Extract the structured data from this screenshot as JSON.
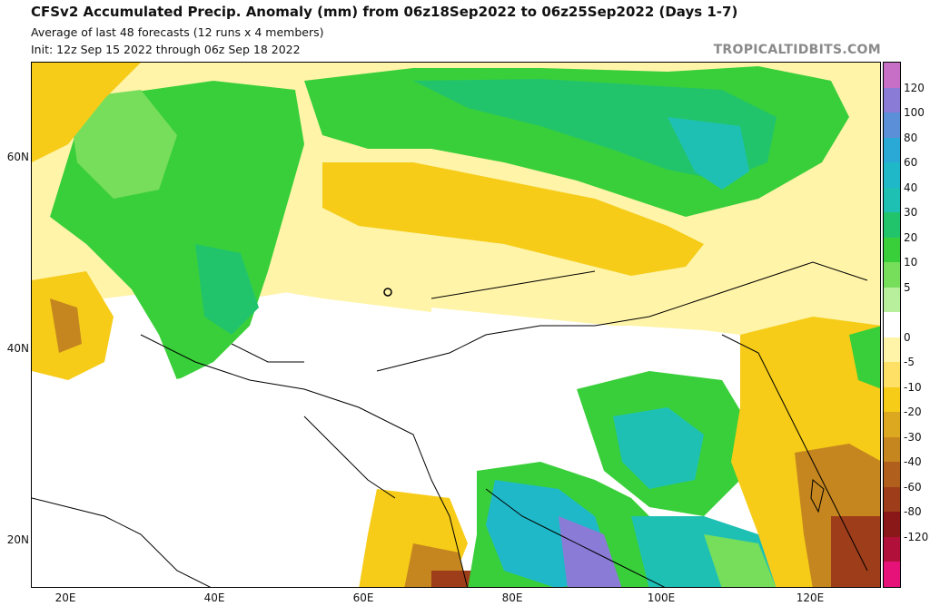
{
  "header": {
    "title": "CFSv2 Accumulated Precip. Anomaly (mm) from 06z18Sep2022 to 06z25Sep2022 (Days 1-7)",
    "subtitle1": "Average of last 48 forecasts (12 runs x 4 members)",
    "subtitle2": "Init: 12z Sep 15 2022 through 06z Sep 18 2022",
    "credit": "TROPICALTIDBITS.COM"
  },
  "axes": {
    "lat_labels": [
      "60N",
      "40N",
      "20N"
    ],
    "lon_labels": [
      "20E",
      "40E",
      "60E",
      "80E",
      "100E",
      "120E"
    ]
  },
  "colorbar": {
    "labels": [
      "120",
      "100",
      "80",
      "60",
      "40",
      "30",
      "20",
      "10",
      "5",
      "0",
      "-5",
      "-10",
      "-20",
      "-30",
      "-40",
      "-60",
      "-80",
      "-120"
    ],
    "colors": [
      "#c76fc7",
      "#8a7bd6",
      "#5b8fd8",
      "#2aa9d6",
      "#1fb8c9",
      "#1ec0b4",
      "#22c46b",
      "#39cf3a",
      "#77de5c",
      "#b7ef9c",
      "#ffffff",
      "#fff4a8",
      "#ffe066",
      "#f6cc18",
      "#dca820",
      "#c5861f",
      "#b0601c",
      "#9e3d1a",
      "#8a1818",
      "#b0103a",
      "#e6127a"
    ]
  },
  "map": {
    "field": "precipitation anomaly (mm)",
    "colors": {
      "wet_strong": "#1fb8c9",
      "wet": "#39cf3a",
      "wet_light": "#77de5c",
      "dry_light": "#fff4a8",
      "dry": "#f6cc18",
      "dry_strong": "#c5861f",
      "dry_extreme": "#9e3d1a",
      "very_wet": "#8a7bd6"
    }
  }
}
